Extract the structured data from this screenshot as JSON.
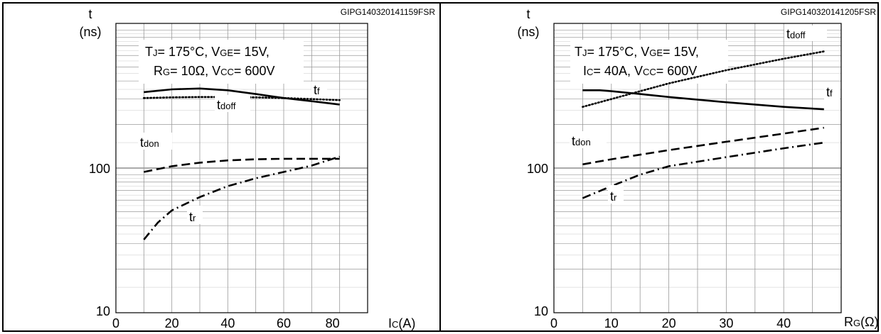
{
  "chart_data": [
    {
      "type": "line",
      "code": "GIPG140320141159FSR",
      "ylabel": "t",
      "yunit": "(ns)",
      "xlabel": "IC(A)",
      "xlabel_main": "I",
      "xlabel_sub": "C",
      "xlabel_tail": "(A)",
      "x_ticks": [
        0,
        20,
        40,
        60,
        80
      ],
      "y_ticks": [
        10,
        100
      ],
      "xlim": [
        0,
        90
      ],
      "ylim": [
        10,
        1000
      ],
      "yscale": "log",
      "grid": true,
      "conditions": [
        [
          {
            "t": "T"
          },
          {
            "t": "J",
            "sub": true
          },
          {
            "t": "= 175°C, V"
          },
          {
            "t": "GE",
            "sub": true
          },
          {
            "t": "= 15V,"
          }
        ],
        [
          {
            "t": "R"
          },
          {
            "t": "G",
            "sub": true
          },
          {
            "t": "= 10Ω, V"
          },
          {
            "t": "CC",
            "sub": true
          },
          {
            "t": "= 600V"
          }
        ]
      ],
      "series": [
        {
          "name": "tf",
          "label_main": "t",
          "label_sub": "f",
          "style": "solid",
          "x": [
            10,
            20,
            30,
            40,
            50,
            60,
            70,
            80
          ],
          "values": [
            335,
            350,
            355,
            345,
            325,
            305,
            290,
            275
          ]
        },
        {
          "name": "tdoff",
          "label_main": "t",
          "label_sub": "doff",
          "style": "dotted",
          "x": [
            10,
            20,
            30,
            40,
            50,
            60,
            70,
            80
          ],
          "values": [
            305,
            308,
            310,
            310,
            308,
            305,
            300,
            295
          ]
        },
        {
          "name": "tdon",
          "label_main": "t",
          "label_sub": "don",
          "style": "dashed",
          "x": [
            10,
            20,
            30,
            40,
            50,
            60,
            70,
            80
          ],
          "values": [
            94,
            103,
            109,
            113,
            115,
            116,
            116,
            116
          ]
        },
        {
          "name": "tr",
          "label_main": "t",
          "label_sub": "r",
          "style": "dashdot",
          "x": [
            10,
            15,
            20,
            30,
            40,
            50,
            60,
            70,
            80
          ],
          "values": [
            32,
            42,
            51,
            63,
            75,
            85,
            94,
            104,
            120
          ]
        }
      ]
    },
    {
      "type": "line",
      "code": "GIPG140320141205FSR",
      "ylabel": "t",
      "yunit": "(ns)",
      "xlabel": "RG(Ω)",
      "xlabel_main": "R",
      "xlabel_sub": "G",
      "xlabel_tail": "(Ω)",
      "x_ticks": [
        0,
        10,
        20,
        30,
        40
      ],
      "y_ticks": [
        10,
        100
      ],
      "xlim": [
        0,
        50
      ],
      "ylim": [
        10,
        1000
      ],
      "yscale": "log",
      "grid": true,
      "conditions": [
        [
          {
            "t": "T"
          },
          {
            "t": "J",
            "sub": true
          },
          {
            "t": "= 175°C, V"
          },
          {
            "t": "GE",
            "sub": true
          },
          {
            "t": "= 15V,"
          }
        ],
        [
          {
            "t": "I"
          },
          {
            "t": "C",
            "sub": true
          },
          {
            "t": "= 40A, V"
          },
          {
            "t": "CC",
            "sub": true
          },
          {
            "t": "= 600V"
          }
        ]
      ],
      "series": [
        {
          "name": "tdoff",
          "label_main": "t",
          "label_sub": "doff",
          "style": "dotted",
          "x": [
            5,
            10,
            15,
            20,
            30,
            40,
            47
          ],
          "values": [
            265,
            300,
            340,
            385,
            475,
            570,
            640
          ]
        },
        {
          "name": "tf",
          "label_main": "t",
          "label_sub": "f",
          "style": "solid",
          "x": [
            5,
            8,
            10,
            15,
            20,
            30,
            40,
            47
          ],
          "values": [
            345,
            345,
            340,
            325,
            310,
            285,
            265,
            255
          ]
        },
        {
          "name": "tdon",
          "label_main": "t",
          "label_sub": "don",
          "style": "dashed",
          "x": [
            5,
            10,
            20,
            30,
            40,
            47
          ],
          "values": [
            106,
            115,
            133,
            152,
            173,
            190
          ]
        },
        {
          "name": "tr",
          "label_main": "t",
          "label_sub": "r",
          "style": "dashdot",
          "x": [
            5,
            10,
            15,
            20,
            30,
            40,
            47
          ],
          "values": [
            62,
            75,
            90,
            103,
            119,
            137,
            150
          ]
        }
      ]
    }
  ]
}
